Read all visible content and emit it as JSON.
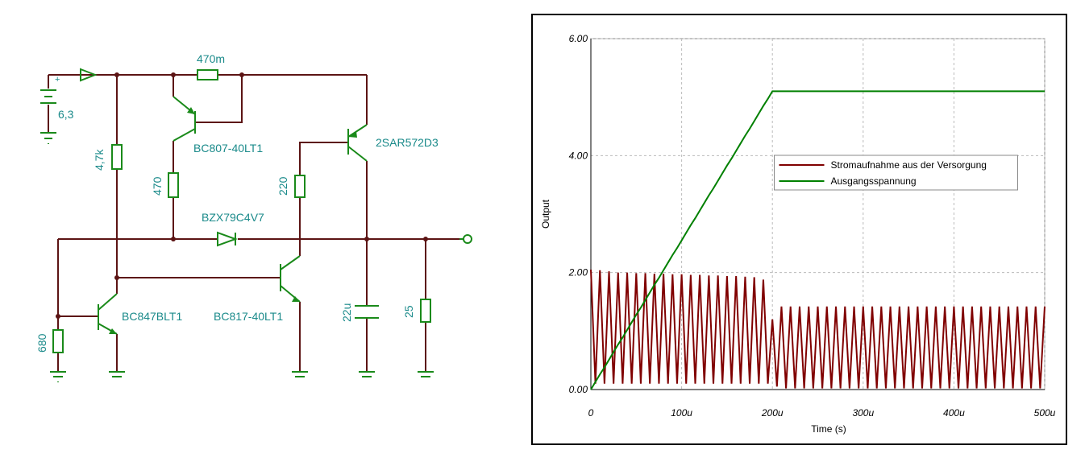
{
  "diagram": {
    "labels": {
      "supply_plus": "+",
      "supply": "6,3",
      "sense_resistor": "470m",
      "pnp_driver": "BC807-40LT1",
      "pass_transistor": "2SAR572D3",
      "r_base": "4,7k",
      "r_collector": "470",
      "r_pass_base": "220",
      "zener": "BZX79C4V7",
      "npn_left": "BC847BLT1",
      "npn_mid": "BC817-40LT1",
      "r_left": "680",
      "capacitor": "22u",
      "load": "25"
    }
  },
  "chart_data": {
    "type": "line",
    "xlabel": "Time (s)",
    "ylabel": "Output",
    "xlim": [
      0,
      0.0005
    ],
    "xticks": [
      0,
      {
        "value": 0.0001,
        "label": "100u"
      },
      {
        "value": 0.0002,
        "label": "200u"
      },
      {
        "value": 0.0003,
        "label": "300u"
      },
      {
        "value": 0.0004,
        "label": "400u"
      },
      {
        "value": 0.0005,
        "label": "500u"
      }
    ],
    "ylim": [
      0,
      6
    ],
    "yticks": [
      {
        "value": 0,
        "label": "0.00"
      },
      {
        "value": 2,
        "label": "2.00"
      },
      {
        "value": 4,
        "label": "4.00"
      },
      {
        "value": 6,
        "label": "6.00"
      }
    ],
    "grid": true,
    "legend": "upper-center",
    "x": [
      0,
      5e-06,
      1e-05,
      1.5e-05,
      2e-05,
      2.5e-05,
      3e-05,
      3.5e-05,
      4e-05,
      4.5e-05,
      5e-05,
      5.5e-05,
      6e-05,
      6.5e-05,
      7e-05,
      7.5e-05,
      8e-05,
      8.5e-05,
      9e-05,
      9.5e-05,
      0.0001,
      0.000105,
      0.00011,
      0.000115,
      0.00012,
      0.000125,
      0.00013,
      0.000135,
      0.00014,
      0.000145,
      0.00015,
      0.000155,
      0.00016,
      0.000165,
      0.00017,
      0.000175,
      0.00018,
      0.000185,
      0.00019,
      0.000195,
      0.0002,
      0.000205,
      0.00021,
      0.000215,
      0.00022,
      0.000225,
      0.00023,
      0.000235,
      0.00024,
      0.000245,
      0.00025,
      0.000255,
      0.00026,
      0.000265,
      0.00027,
      0.000275,
      0.00028,
      0.000285,
      0.00029,
      0.000295,
      0.0003,
      0.000305,
      0.00031,
      0.000315,
      0.00032,
      0.000325,
      0.00033,
      0.000335,
      0.00034,
      0.000345,
      0.00035,
      0.000355,
      0.00036,
      0.000365,
      0.00037,
      0.000375,
      0.00038,
      0.000385,
      0.00039,
      0.000395,
      0.0004,
      0.000405,
      0.00041,
      0.000415,
      0.00042,
      0.000425,
      0.00043,
      0.000435,
      0.00044,
      0.000445,
      0.00045,
      0.000455,
      0.00046,
      0.000465,
      0.00047,
      0.000475,
      0.00048,
      0.000485,
      0.00049,
      0.000495,
      0.0005
    ],
    "series": [
      {
        "name": "Stromaufnahme aus der Versorgung",
        "color": "#800000",
        "values": [
          2.05,
          0.1,
          2.04,
          0.1,
          2.02,
          0.1,
          2.0,
          0.1,
          2.0,
          0.1,
          1.99,
          0.1,
          1.99,
          0.1,
          1.98,
          0.1,
          1.98,
          0.1,
          1.97,
          0.1,
          1.97,
          0.1,
          1.96,
          0.1,
          1.96,
          0.1,
          1.95,
          0.1,
          1.95,
          0.1,
          1.94,
          0.1,
          1.94,
          0.1,
          1.93,
          0.1,
          1.92,
          0.1,
          1.88,
          0.1,
          1.2,
          0.05,
          1.42,
          0.02,
          1.42,
          0.02,
          1.42,
          0.02,
          1.42,
          0.02,
          1.42,
          0.02,
          1.42,
          0.02,
          1.42,
          0.02,
          1.42,
          0.02,
          1.42,
          0.02,
          1.42,
          0.02,
          1.42,
          0.02,
          1.42,
          0.02,
          1.42,
          0.02,
          1.42,
          0.02,
          1.42,
          0.02,
          1.42,
          0.02,
          1.42,
          0.02,
          1.42,
          0.02,
          1.42,
          0.02,
          1.42,
          0.02,
          1.42,
          0.02,
          1.42,
          0.02,
          1.42,
          0.02,
          1.42,
          0.02,
          1.42,
          0.02,
          1.42,
          0.02,
          1.42,
          0.02,
          1.42,
          0.02,
          1.42,
          0.02,
          1.42
        ]
      },
      {
        "name": "Ausgangsspannung",
        "color": "#008000",
        "values": [
          0,
          0.13,
          0.26,
          0.38,
          0.51,
          0.64,
          0.77,
          0.89,
          1.02,
          1.15,
          1.28,
          1.4,
          1.53,
          1.66,
          1.79,
          1.91,
          2.04,
          2.17,
          2.3,
          2.42,
          2.55,
          2.68,
          2.81,
          2.93,
          3.06,
          3.19,
          3.32,
          3.44,
          3.57,
          3.7,
          3.83,
          3.95,
          4.08,
          4.21,
          4.34,
          4.46,
          4.59,
          4.72,
          4.85,
          4.97,
          5.1,
          5.1,
          5.1,
          5.1,
          5.1,
          5.1,
          5.1,
          5.1,
          5.1,
          5.1,
          5.1,
          5.1,
          5.1,
          5.1,
          5.1,
          5.1,
          5.1,
          5.1,
          5.1,
          5.1,
          5.1,
          5.1,
          5.1,
          5.1,
          5.1,
          5.1,
          5.1,
          5.1,
          5.1,
          5.1,
          5.1,
          5.1,
          5.1,
          5.1,
          5.1,
          5.1,
          5.1,
          5.1,
          5.1,
          5.1,
          5.1,
          5.1,
          5.1,
          5.1,
          5.1,
          5.1,
          5.1,
          5.1,
          5.1,
          5.1,
          5.1,
          5.1,
          5.1,
          5.1,
          5.1,
          5.1,
          5.1,
          5.1,
          5.1,
          5.1,
          5.1
        ]
      }
    ]
  }
}
